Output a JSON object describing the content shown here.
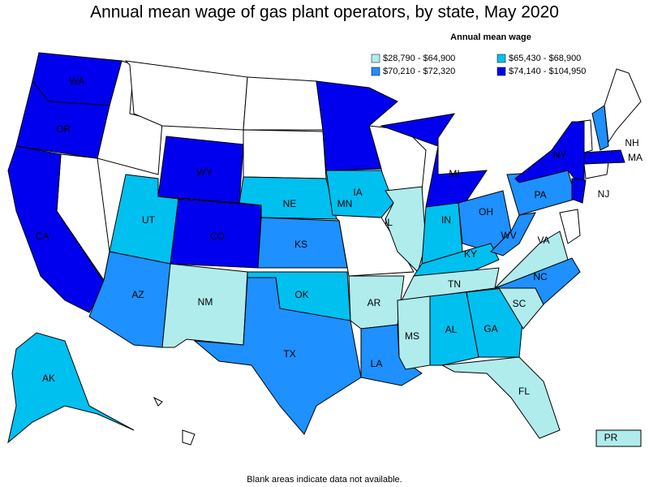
{
  "title": "Annual mean wage of gas plant operators, by state, May 2020",
  "legend": {
    "title": "Annual mean wage",
    "items": [
      {
        "label": "$28,790 - $64,900",
        "color": "#b0ecec"
      },
      {
        "label": "$65,430 - $68,900",
        "color": "#00c0f0"
      },
      {
        "label": "$70,210 - $72,320",
        "color": "#1e90ff"
      },
      {
        "label": "$74,140 - $104,950",
        "color": "#0000ee"
      }
    ]
  },
  "states": [
    {
      "label": "WA",
      "bin": 3
    },
    {
      "label": "OR",
      "bin": 3
    },
    {
      "label": "CA",
      "bin": 3
    },
    {
      "label": "WY",
      "bin": 3
    },
    {
      "label": "UT",
      "bin": 1
    },
    {
      "label": "CO",
      "bin": 3
    },
    {
      "label": "AZ",
      "bin": 2
    },
    {
      "label": "NM",
      "bin": 0
    },
    {
      "label": "NE",
      "bin": 1
    },
    {
      "label": "KS",
      "bin": 2
    },
    {
      "label": "OK",
      "bin": 1
    },
    {
      "label": "TX",
      "bin": 2
    },
    {
      "label": "MN",
      "bin": 3
    },
    {
      "label": "IA",
      "bin": 1
    },
    {
      "label": "AR",
      "bin": 0
    },
    {
      "label": "LA",
      "bin": 2
    },
    {
      "label": "IL",
      "bin": 0
    },
    {
      "label": "MI",
      "bin": 3
    },
    {
      "label": "IN",
      "bin": 1
    },
    {
      "label": "OH",
      "bin": 2
    },
    {
      "label": "KY",
      "bin": 1
    },
    {
      "label": "TN",
      "bin": 0
    },
    {
      "label": "MS",
      "bin": 0
    },
    {
      "label": "AL",
      "bin": 1
    },
    {
      "label": "GA",
      "bin": 1
    },
    {
      "label": "FL",
      "bin": 0
    },
    {
      "label": "SC",
      "bin": 0
    },
    {
      "label": "NC",
      "bin": 2
    },
    {
      "label": "VA",
      "bin": 0
    },
    {
      "label": "WV",
      "bin": 2
    },
    {
      "label": "PA",
      "bin": 2
    },
    {
      "label": "NY",
      "bin": 3
    },
    {
      "label": "NJ",
      "bin": 3
    },
    {
      "label": "NH",
      "bin": 2
    },
    {
      "label": "MA",
      "bin": 3
    },
    {
      "label": "AK",
      "bin": 1
    },
    {
      "label": "PR",
      "bin": 0
    }
  ],
  "footnote": "Blank areas indicate data not available."
}
